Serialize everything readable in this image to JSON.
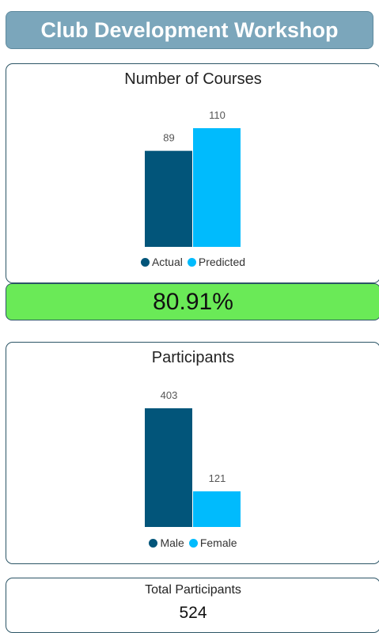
{
  "header": {
    "title": "Club Development Workshop"
  },
  "chart_data": [
    {
      "type": "bar",
      "title": "Number of Courses",
      "series": [
        {
          "name": "Actual",
          "color": "#02557a",
          "values": [
            89
          ]
        },
        {
          "name": "Predicted",
          "color": "#00bbfd",
          "values": [
            110
          ]
        }
      ]
    },
    {
      "type": "bar",
      "title": "Participants",
      "series": [
        {
          "name": "Male",
          "color": "#02557a",
          "values": [
            403
          ]
        },
        {
          "name": "Female",
          "color": "#00bbfd",
          "values": [
            121
          ]
        }
      ]
    }
  ],
  "kpi": {
    "value": "80.91%"
  },
  "total": {
    "label": "Total Participants",
    "value": 524
  }
}
